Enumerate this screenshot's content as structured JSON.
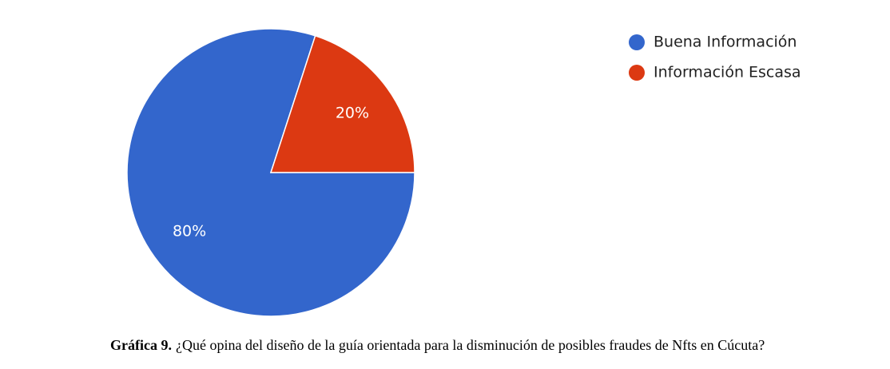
{
  "chart_data": {
    "type": "pie",
    "categories": [
      "Buena Información",
      "Información Escasa"
    ],
    "values": [
      80,
      20
    ],
    "value_labels": [
      "80%",
      "20%"
    ],
    "colors": [
      "#3366cc",
      "#dc3912"
    ],
    "legend": "top-right",
    "figure_label": "Gráfica 9.",
    "caption": "¿Qué opina del diseño de la guía orientada para la disminución de posibles fraudes de Nfts en Cúcuta?"
  }
}
